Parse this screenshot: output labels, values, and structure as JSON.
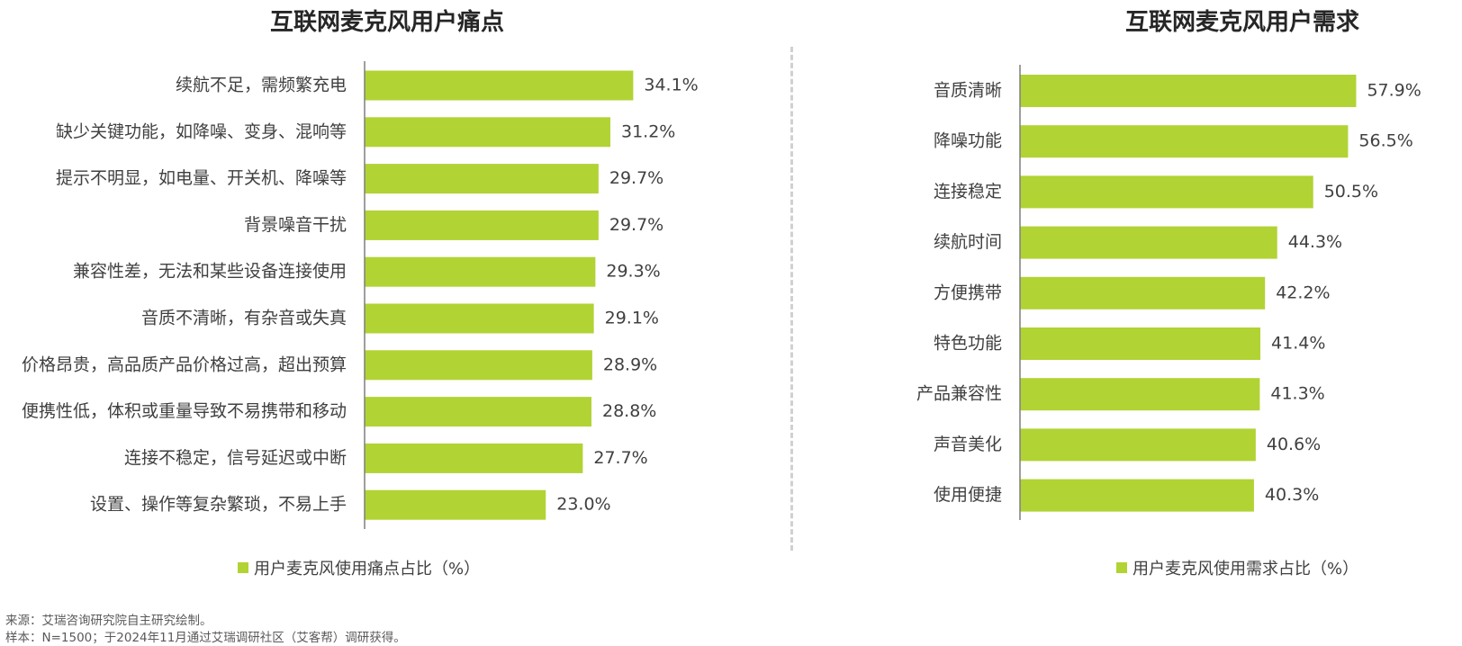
{
  "colors": {
    "bar": "#b1d334",
    "axis": "#7f7f7f",
    "text": "#404040",
    "divider": "#d0d0d0"
  },
  "chart_data": [
    {
      "type": "bar",
      "orientation": "horizontal",
      "title": "互联网麦克风用户痛点",
      "legend": "用户麦克风使用痛点占比（%）",
      "legend_position": "bottom",
      "grid": false,
      "xlim": [
        0,
        40
      ],
      "categories": [
        "续航不足，需频繁充电",
        "缺少关键功能，如降噪、变身、混响等",
        "提示不明显，如电量、开关机、降噪等",
        "背景噪音干扰",
        "兼容性差，无法和某些设备连接使用",
        "音质不清晰，有杂音或失真",
        "价格昂贵，高品质产品价格过高，超出预算",
        "便携性低，体积或重量导致不易携带和移动",
        "连接不稳定，信号延迟或中断",
        "设置、操作等复杂繁琐，不易上手"
      ],
      "values": [
        34.1,
        31.2,
        29.7,
        29.7,
        29.3,
        29.1,
        28.9,
        28.8,
        27.7,
        23.0
      ],
      "value_labels": [
        "34.1%",
        "31.2%",
        "29.7%",
        "29.7%",
        "29.3%",
        "29.1%",
        "28.9%",
        "28.8%",
        "27.7%",
        "23.0%"
      ]
    },
    {
      "type": "bar",
      "orientation": "horizontal",
      "title": "互联网麦克风用户需求",
      "legend": "用户麦克风使用需求占比（%）",
      "legend_position": "bottom",
      "grid": false,
      "xlim": [
        0,
        60
      ],
      "categories": [
        "音质清晰",
        "降噪功能",
        "连接稳定",
        "续航时间",
        "方便携带",
        "特色功能",
        "产品兼容性",
        "声音美化",
        "使用便捷"
      ],
      "values": [
        57.9,
        56.5,
        50.5,
        44.3,
        42.2,
        41.4,
        41.3,
        40.6,
        40.3
      ],
      "value_labels": [
        "57.9%",
        "56.5%",
        "50.5%",
        "44.3%",
        "42.2%",
        "41.4%",
        "41.3%",
        "40.6%",
        "40.3%"
      ]
    }
  ],
  "footnotes": {
    "source": "来源：艾瑞咨询研究院自主研究绘制。",
    "sample": "样本：N=1500；于2024年11月通过艾瑞调研社区（艾客帮）调研获得。"
  }
}
